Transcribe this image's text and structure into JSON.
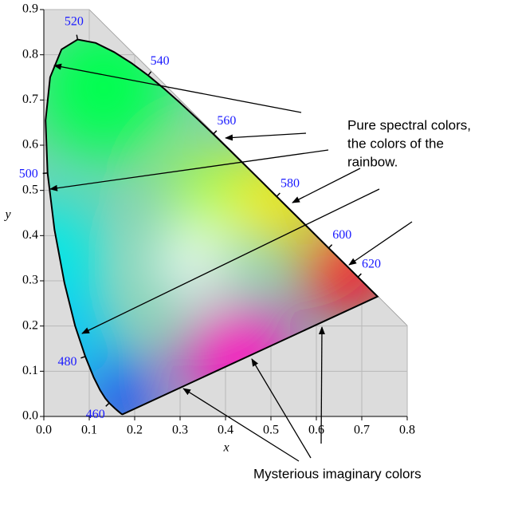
{
  "chart_data": {
    "type": "line",
    "x": [
      0.1741,
      0.1733,
      0.1714,
      0.1644,
      0.1566,
      0.144,
      0.1355,
      0.1241,
      0.1096,
      0.0913,
      0.0687,
      0.0454,
      0.0235,
      0.0082,
      0.0039,
      0.0139,
      0.0389,
      0.0743,
      0.1142,
      0.1547,
      0.1929,
      0.2296,
      0.2658,
      0.3016,
      0.3373,
      0.3731,
      0.4087,
      0.4441,
      0.4788,
      0.5125,
      0.5448,
      0.5752,
      0.6029,
      0.627,
      0.6658,
      0.6915,
      0.7079,
      0.719,
      0.73,
      0.7347
    ],
    "values": [
      0.005,
      0.0048,
      0.0051,
      0.0109,
      0.0177,
      0.0297,
      0.0399,
      0.0578,
      0.0868,
      0.1327,
      0.2007,
      0.295,
      0.4127,
      0.5384,
      0.6548,
      0.7502,
      0.812,
      0.8338,
      0.8262,
      0.8059,
      0.7816,
      0.7543,
      0.7243,
      0.6923,
      0.6589,
      0.6245,
      0.5896,
      0.5547,
      0.5202,
      0.4866,
      0.4544,
      0.4242,
      0.3965,
      0.3725,
      0.334,
      0.3083,
      0.292,
      0.2809,
      0.27,
      0.2653
    ],
    "point_labels": [
      {
        "wavelength": 460,
        "x": 0.144,
        "y": 0.0297
      },
      {
        "wavelength": 480,
        "x": 0.0913,
        "y": 0.1327
      },
      {
        "wavelength": 500,
        "x": 0.0082,
        "y": 0.5384
      },
      {
        "wavelength": 520,
        "x": 0.0743,
        "y": 0.8338
      },
      {
        "wavelength": 540,
        "x": 0.2296,
        "y": 0.7543
      },
      {
        "wavelength": 560,
        "x": 0.3731,
        "y": 0.6245
      },
      {
        "wavelength": 580,
        "x": 0.5125,
        "y": 0.4866
      },
      {
        "wavelength": 600,
        "x": 0.627,
        "y": 0.3725
      },
      {
        "wavelength": 620,
        "x": 0.6915,
        "y": 0.3083
      }
    ],
    "xlabel": "x",
    "ylabel": "y",
    "xlim": [
      0,
      0.8
    ],
    "ylim": [
      0,
      0.9
    ],
    "xticks": [
      {
        "value": 0,
        "label": "0.0"
      },
      0.1,
      0.2,
      0.3,
      0.4,
      0.5,
      0.6,
      0.7,
      0.8
    ],
    "yticks": [
      {
        "value": 0,
        "label": "0.0"
      },
      0.1,
      0.2,
      0.3,
      0.4,
      0.5,
      0.6,
      0.7,
      0.8,
      0.9
    ],
    "grid": true,
    "annotations": [
      {
        "lines": [
          "Pure spectral colors,",
          "the colors of the",
          "rainbow."
        ]
      },
      {
        "lines": [
          "Mysterious imaginary colors"
        ]
      }
    ]
  }
}
